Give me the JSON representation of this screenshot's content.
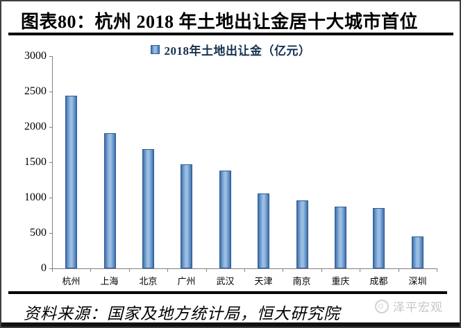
{
  "header": {
    "title": "图表80：杭州 2018 年土地出让金居十大城市首位"
  },
  "legend": {
    "label": "2018年土地出让金（亿元）"
  },
  "chart_data": {
    "type": "bar",
    "title": "杭州2018年土地出让金居十大城市首位",
    "categories": [
      "杭州",
      "上海",
      "北京",
      "广州",
      "武汉",
      "天津",
      "南京",
      "重庆",
      "成都",
      "深圳"
    ],
    "values": [
      2443,
      1910,
      1683,
      1469,
      1380,
      1060,
      963,
      871,
      854,
      450
    ],
    "series_name": "2018年土地出让金（亿元）",
    "xlabel": "",
    "ylabel": "",
    "ylim": [
      0,
      3000
    ],
    "yticks": [
      0,
      500,
      1000,
      1500,
      2000,
      2500,
      3000
    ],
    "grid": false,
    "legend_position": "top"
  },
  "footer": {
    "source": "资料来源：国家及地方统计局，恒大研究院",
    "watermark": "泽平宏观"
  },
  "colors": {
    "bar_base": "#4f81bd",
    "bar_light": "#9bbde2",
    "bar_dark": "#3c6ca6",
    "bar_border": "#2f5c93",
    "axis": "#808080",
    "rule": "#000000",
    "legend_text": "#16304f",
    "watermark": "#c6c6c6"
  }
}
